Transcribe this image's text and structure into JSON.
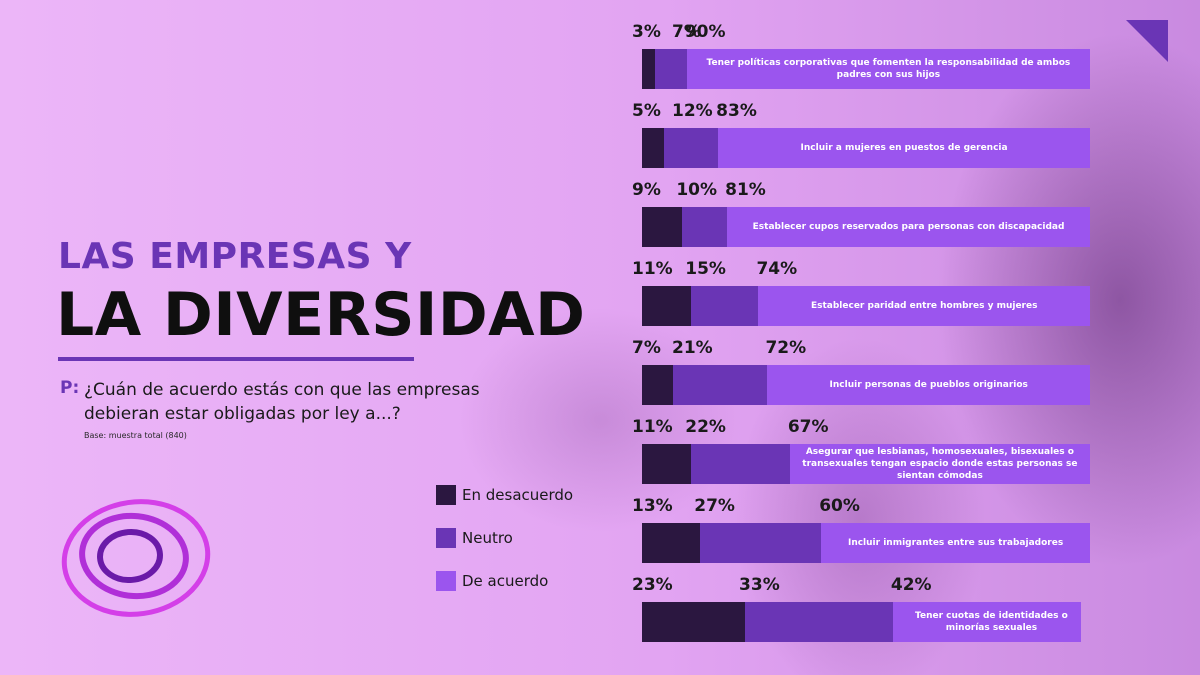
{
  "title": {
    "line1": "LAS EMPRESAS Y",
    "line2": "LA DIVERSIDAD"
  },
  "question": {
    "prefix": "P:",
    "text": "¿Cuán de acuerdo estás con que las empresas debieran estar obligadas por ley a...?",
    "base": "Base: muestra total (840)"
  },
  "colors": {
    "desacuerdo": "#2b1740",
    "neutro": "#6a35b5",
    "acuerdo": "#9b55ee",
    "accent": "#6a35b5",
    "background": "#e6a8f4"
  },
  "chart_data": {
    "type": "bar",
    "orientation": "horizontal",
    "stacked": true,
    "unit": "%",
    "series": [
      {
        "name": "En desacuerdo",
        "values": [
          3,
          5,
          9,
          11,
          7,
          11,
          13,
          23
        ]
      },
      {
        "name": "Neutro",
        "values": [
          7,
          12,
          10,
          15,
          21,
          22,
          27,
          33
        ]
      },
      {
        "name": "De acuerdo",
        "values": [
          90,
          83,
          81,
          74,
          72,
          67,
          60,
          42
        ]
      }
    ],
    "categories": [
      "Tener políticas corporativas que fomenten la responsabilidad de ambos padres con sus hijos",
      "Incluir a mujeres en puestos de gerencia",
      "Establecer cupos reservados para personas con discapacidad",
      "Establecer paridad entre hombres y mujeres",
      "Incluir personas de pueblos originarios",
      "Asegurar que lesbianas, homosexuales, bisexuales o transexuales tengan espacio donde estas personas se sientan cómodas",
      "Incluir inmigrantes entre sus trabajadores",
      "Tener cuotas de identidades o minorías sexuales"
    ],
    "value_labels": [
      [
        "3%",
        "7%",
        "90%"
      ],
      [
        "5%",
        "12%",
        "83%"
      ],
      [
        "9%",
        "10%",
        "81%"
      ],
      [
        "11%",
        "15%",
        "74%"
      ],
      [
        "7%",
        "21%",
        "72%"
      ],
      [
        "11%",
        "22%",
        "67%"
      ],
      [
        "13%",
        "27%",
        "60%"
      ],
      [
        "23%",
        "33%",
        "42%"
      ]
    ],
    "xlim": [
      0,
      100
    ],
    "legend": "bottom-left"
  },
  "legend": [
    {
      "label": "En desacuerdo",
      "color": "#2b1740"
    },
    {
      "label": "Neutro",
      "color": "#6a35b5"
    },
    {
      "label": "De acuerdo",
      "color": "#9b55ee"
    }
  ],
  "icons": {
    "corner": "corner-triangle-icon",
    "logo": "concentric-rings-logo"
  }
}
